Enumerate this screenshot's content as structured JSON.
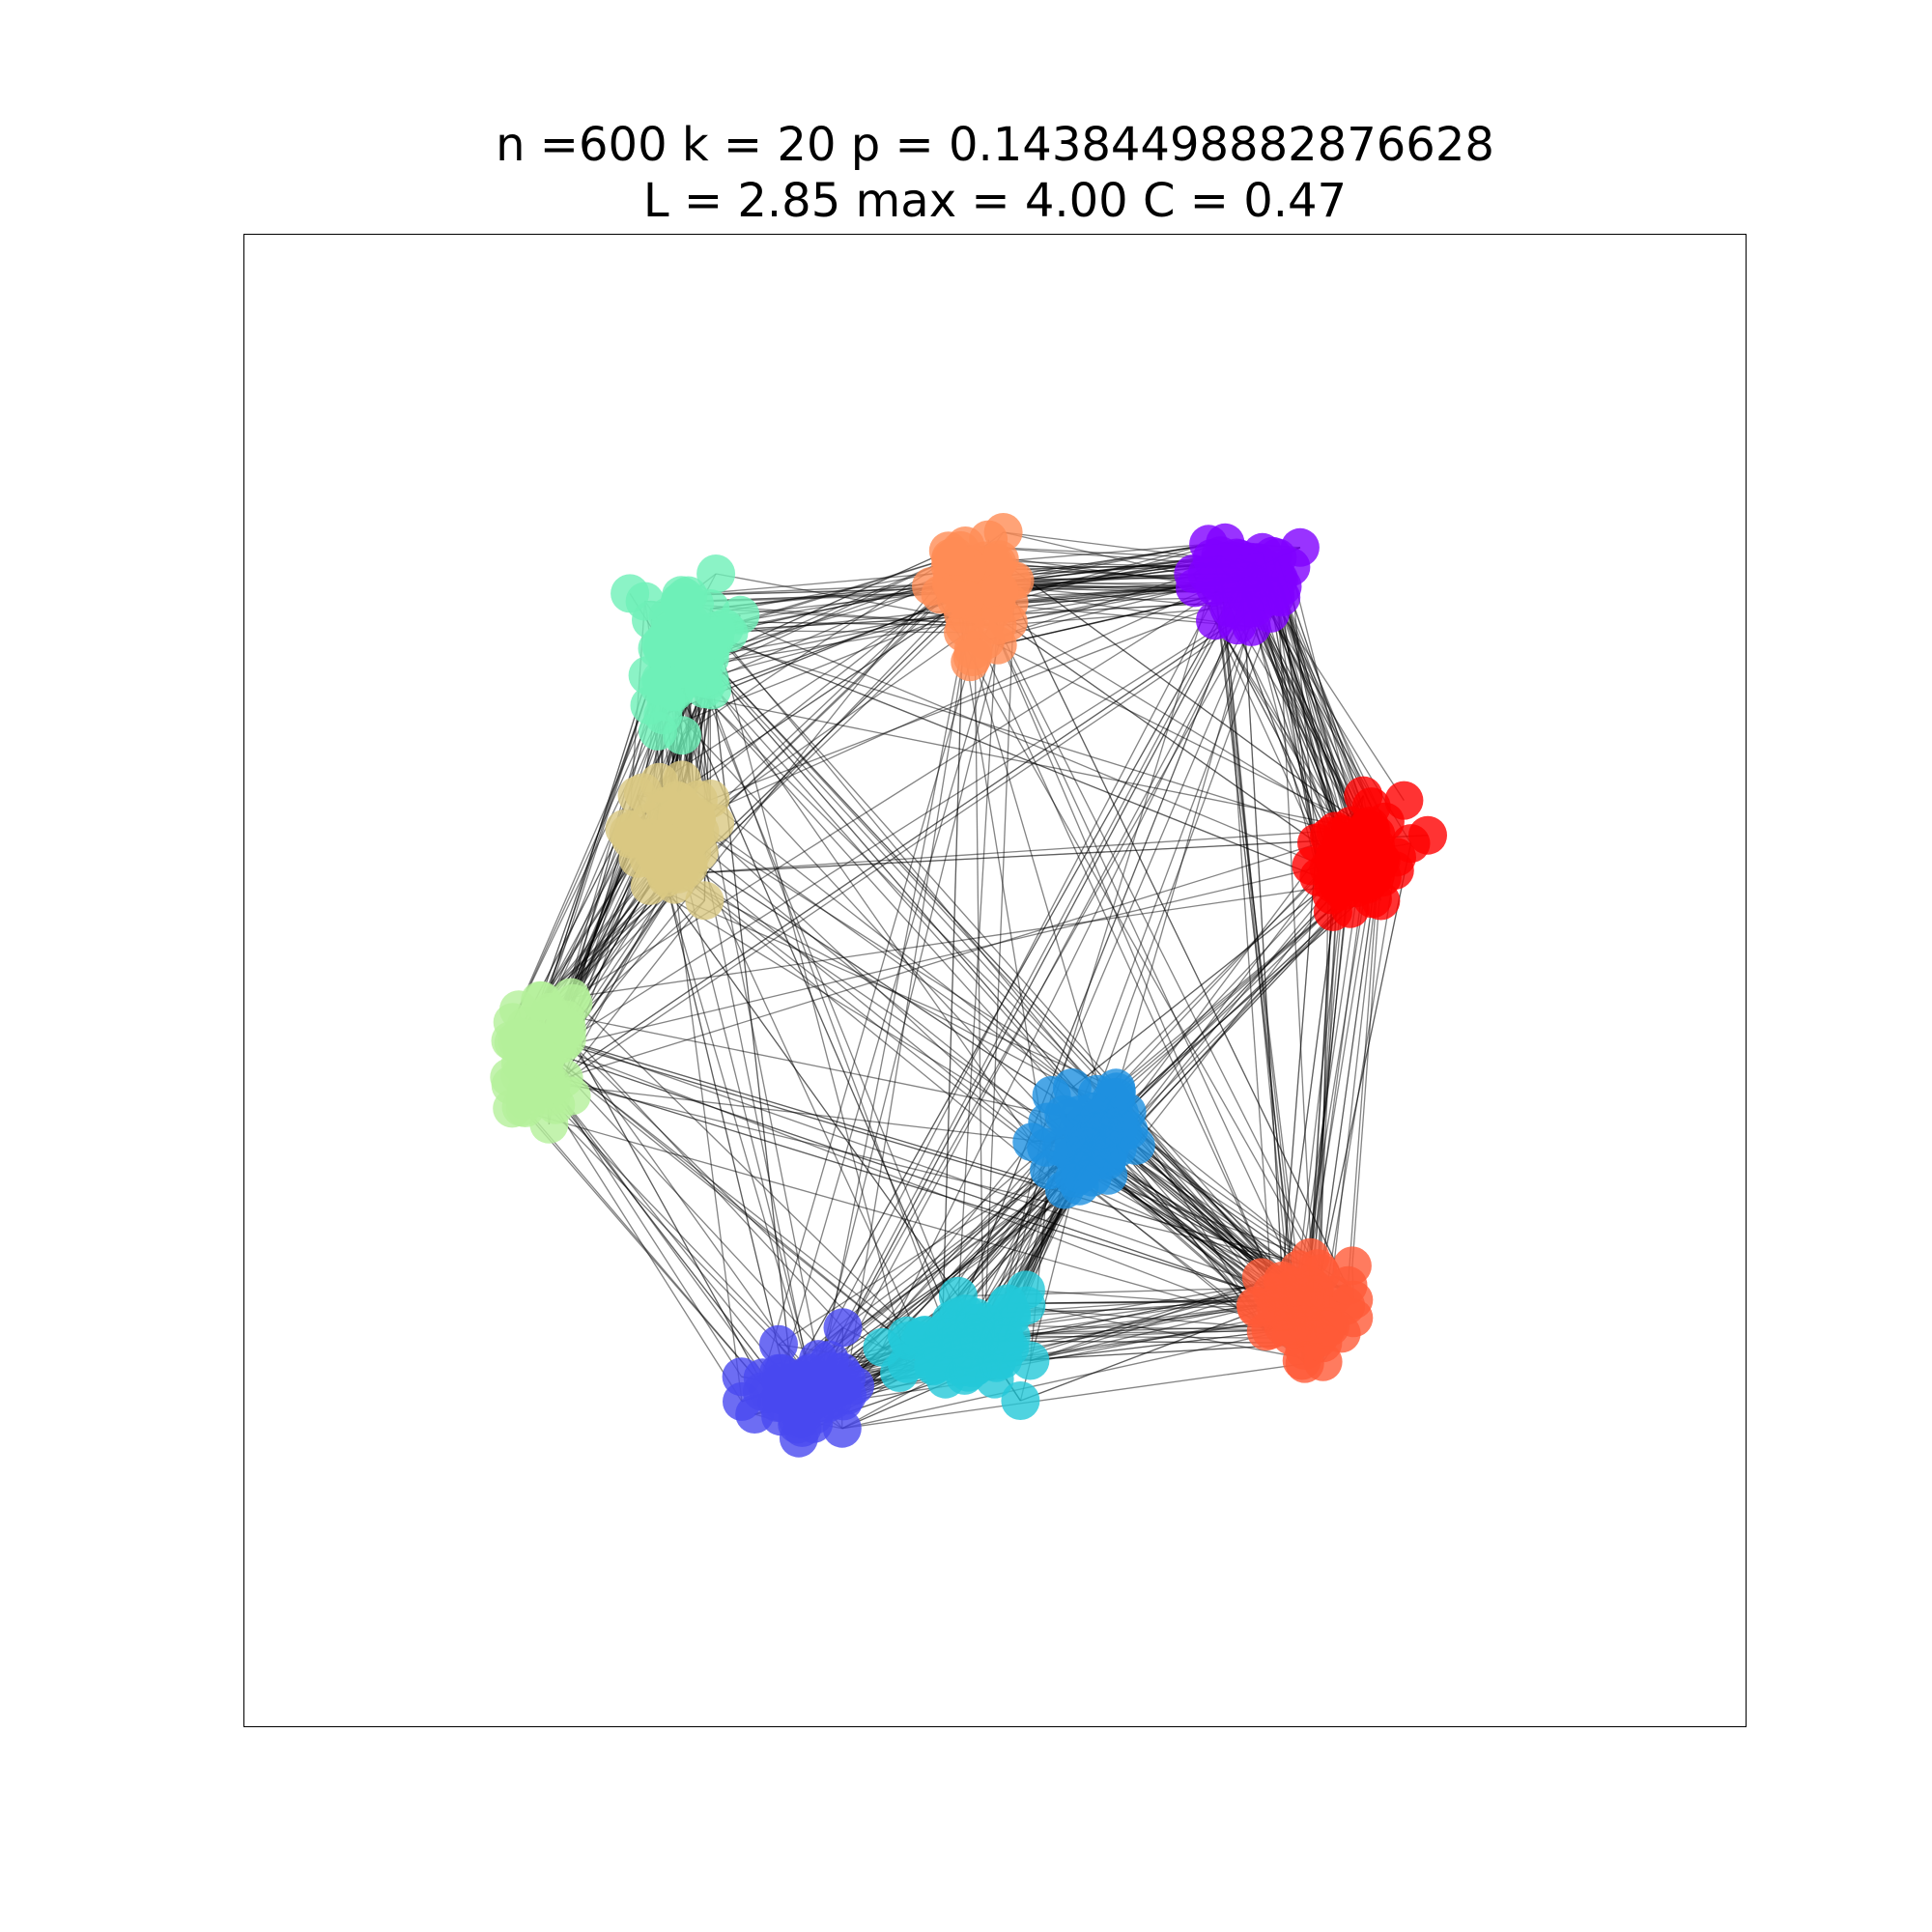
{
  "figure": {
    "title_line_1": "n =600 k = 20 p = 0.14384498882876628",
    "title_line_2": "L = 2.85 max = 4.00 C = 0.47"
  },
  "graph": {
    "n": 600,
    "k": 20,
    "p": 0.14384498882876628,
    "L": 2.85,
    "max": 4.0,
    "C": 0.47,
    "edge_color": "#000000",
    "node_opacity": 0.8,
    "communities": [
      {
        "color": "#8000ff"
      },
      {
        "color": "#ff0000"
      },
      {
        "color": "#ff8c55"
      },
      {
        "color": "#d9c882"
      },
      {
        "color": "#6ef0b8"
      },
      {
        "color": "#b4f09a"
      },
      {
        "color": "#23c8d8"
      },
      {
        "color": "#1e90e0"
      },
      {
        "color": "#4848f0"
      },
      {
        "color": "#ff5a37"
      }
    ]
  }
}
